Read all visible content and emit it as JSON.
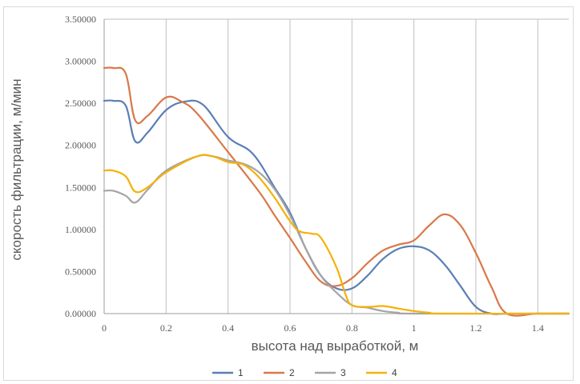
{
  "chart_data": {
    "type": "line",
    "xlabel": "высота над выработкой, м",
    "ylabel": "скорость фильтрации, м/мин",
    "xlim": [
      0,
      1.5
    ],
    "ylim": [
      0,
      3.5
    ],
    "x_ticks": [
      "0",
      "0.2",
      "0.4",
      "0.6",
      "0.8",
      "1",
      "1.2",
      "1.4"
    ],
    "y_ticks": [
      "0.00000",
      "0.50000",
      "1.00000",
      "1.50000",
      "2.00000",
      "2.50000",
      "3.00000",
      "3.50000"
    ],
    "grid": "vertical",
    "legend_position": "bottom",
    "series": [
      {
        "name": "1",
        "color": "#5b7fb5",
        "points": [
          [
            0,
            2.53
          ],
          [
            0.03,
            2.53
          ],
          [
            0.07,
            2.47
          ],
          [
            0.1,
            2.05
          ],
          [
            0.14,
            2.15
          ],
          [
            0.2,
            2.42
          ],
          [
            0.26,
            2.52
          ],
          [
            0.32,
            2.48
          ],
          [
            0.4,
            2.1
          ],
          [
            0.48,
            1.9
          ],
          [
            0.55,
            1.5
          ],
          [
            0.6,
            1.2
          ],
          [
            0.65,
            0.78
          ],
          [
            0.7,
            0.45
          ],
          [
            0.75,
            0.3
          ],
          [
            0.8,
            0.3
          ],
          [
            0.85,
            0.45
          ],
          [
            0.9,
            0.65
          ],
          [
            0.95,
            0.77
          ],
          [
            1.0,
            0.8
          ],
          [
            1.05,
            0.75
          ],
          [
            1.1,
            0.58
          ],
          [
            1.15,
            0.33
          ],
          [
            1.2,
            0.08
          ],
          [
            1.25,
            0.0
          ],
          [
            1.3,
            0.0
          ],
          [
            1.4,
            0.0
          ],
          [
            1.5,
            0.0
          ]
        ]
      },
      {
        "name": "2",
        "color": "#d9784a",
        "points": [
          [
            0,
            2.92
          ],
          [
            0.03,
            2.92
          ],
          [
            0.07,
            2.85
          ],
          [
            0.1,
            2.3
          ],
          [
            0.14,
            2.35
          ],
          [
            0.2,
            2.57
          ],
          [
            0.25,
            2.52
          ],
          [
            0.3,
            2.38
          ],
          [
            0.4,
            1.92
          ],
          [
            0.5,
            1.45
          ],
          [
            0.55,
            1.17
          ],
          [
            0.6,
            0.9
          ],
          [
            0.65,
            0.62
          ],
          [
            0.7,
            0.38
          ],
          [
            0.75,
            0.33
          ],
          [
            0.8,
            0.42
          ],
          [
            0.85,
            0.6
          ],
          [
            0.9,
            0.75
          ],
          [
            0.95,
            0.82
          ],
          [
            1.0,
            0.87
          ],
          [
            1.05,
            1.05
          ],
          [
            1.1,
            1.18
          ],
          [
            1.15,
            1.05
          ],
          [
            1.2,
            0.72
          ],
          [
            1.25,
            0.32
          ],
          [
            1.3,
            0.0
          ],
          [
            1.4,
            0.0
          ],
          [
            1.5,
            0.0
          ]
        ]
      },
      {
        "name": "3",
        "color": "#a5a5a5",
        "points": [
          [
            0,
            1.46
          ],
          [
            0.03,
            1.46
          ],
          [
            0.07,
            1.4
          ],
          [
            0.1,
            1.32
          ],
          [
            0.14,
            1.47
          ],
          [
            0.2,
            1.7
          ],
          [
            0.3,
            1.87
          ],
          [
            0.35,
            1.87
          ],
          [
            0.4,
            1.82
          ],
          [
            0.45,
            1.78
          ],
          [
            0.5,
            1.68
          ],
          [
            0.55,
            1.48
          ],
          [
            0.6,
            1.17
          ],
          [
            0.65,
            0.78
          ],
          [
            0.7,
            0.45
          ],
          [
            0.75,
            0.25
          ],
          [
            0.8,
            0.1
          ],
          [
            0.85,
            0.07
          ],
          [
            0.9,
            0.03
          ],
          [
            0.95,
            0.01
          ],
          [
            1.0,
            0.0
          ],
          [
            1.5,
            0.0
          ]
        ]
      },
      {
        "name": "4",
        "color": "#f5b10a",
        "points": [
          [
            0,
            1.7
          ],
          [
            0.03,
            1.7
          ],
          [
            0.07,
            1.63
          ],
          [
            0.1,
            1.45
          ],
          [
            0.14,
            1.5
          ],
          [
            0.2,
            1.68
          ],
          [
            0.3,
            1.87
          ],
          [
            0.35,
            1.87
          ],
          [
            0.4,
            1.8
          ],
          [
            0.45,
            1.77
          ],
          [
            0.5,
            1.62
          ],
          [
            0.55,
            1.38
          ],
          [
            0.6,
            1.1
          ],
          [
            0.63,
            0.98
          ],
          [
            0.67,
            0.95
          ],
          [
            0.7,
            0.9
          ],
          [
            0.75,
            0.55
          ],
          [
            0.78,
            0.22
          ],
          [
            0.8,
            0.1
          ],
          [
            0.85,
            0.08
          ],
          [
            0.9,
            0.09
          ],
          [
            0.95,
            0.06
          ],
          [
            1.0,
            0.03
          ],
          [
            1.05,
            0.01
          ],
          [
            1.1,
            0.0
          ],
          [
            1.5,
            0.0
          ]
        ]
      }
    ]
  }
}
